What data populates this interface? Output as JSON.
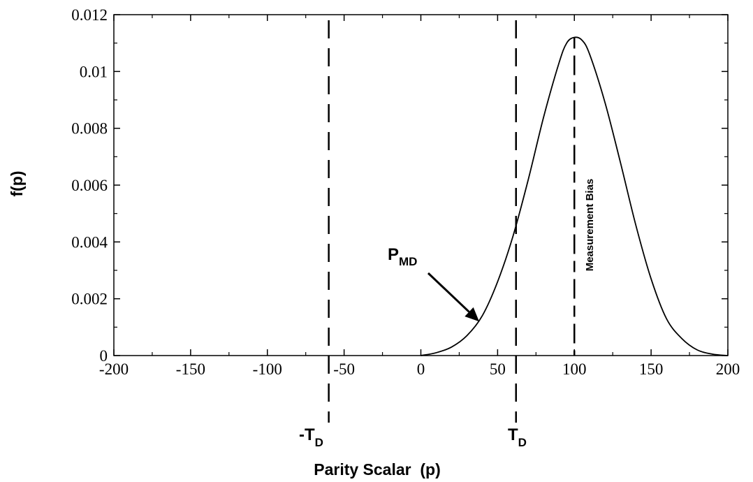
{
  "chart_data": {
    "type": "line",
    "xlabel": "Parity Scalar  (p)",
    "ylabel": "f(p)",
    "xlim": [
      -200,
      200
    ],
    "ylim": [
      0,
      0.012
    ],
    "x_ticks": [
      -200,
      -150,
      -100,
      -50,
      0,
      50,
      100,
      150,
      200
    ],
    "x_tick_labels": [
      "-200",
      "-150",
      "-100",
      "-50",
      "0",
      "50",
      "100",
      "150",
      "200"
    ],
    "y_ticks": [
      0,
      0.002,
      0.004,
      0.006,
      0.008,
      0.01,
      0.012
    ],
    "y_tick_labels": [
      "0",
      "0.002",
      "0.004",
      "0.006",
      "0.008",
      "0.01",
      "0.012"
    ],
    "grid": false,
    "series": [
      {
        "x": [
          0,
          10,
          20,
          30,
          40,
          50,
          60,
          70,
          80,
          90,
          95,
          100,
          105,
          110,
          120,
          130,
          140,
          150,
          160,
          170,
          180,
          190,
          200
        ],
        "values": [
          0.0,
          0.0001,
          0.0003,
          0.0007,
          0.0014,
          0.0026,
          0.0042,
          0.0062,
          0.0084,
          0.0103,
          0.011,
          0.0112,
          0.0111,
          0.0106,
          0.0089,
          0.0068,
          0.0046,
          0.0027,
          0.0013,
          0.0006,
          0.0002,
          5e-05,
          0.0
        ]
      }
    ],
    "threshold_lines": [
      {
        "x": -60,
        "label_main": "-T",
        "label_sub": "D"
      },
      {
        "x": 62,
        "label_main": "T",
        "label_sub": "D"
      }
    ],
    "mean_line": {
      "x": 100,
      "label": "Measurement Bias"
    },
    "annotation": {
      "label_main": "P",
      "label_sub": "MD",
      "arrow_to": [
        38,
        0.0012
      ]
    }
  }
}
